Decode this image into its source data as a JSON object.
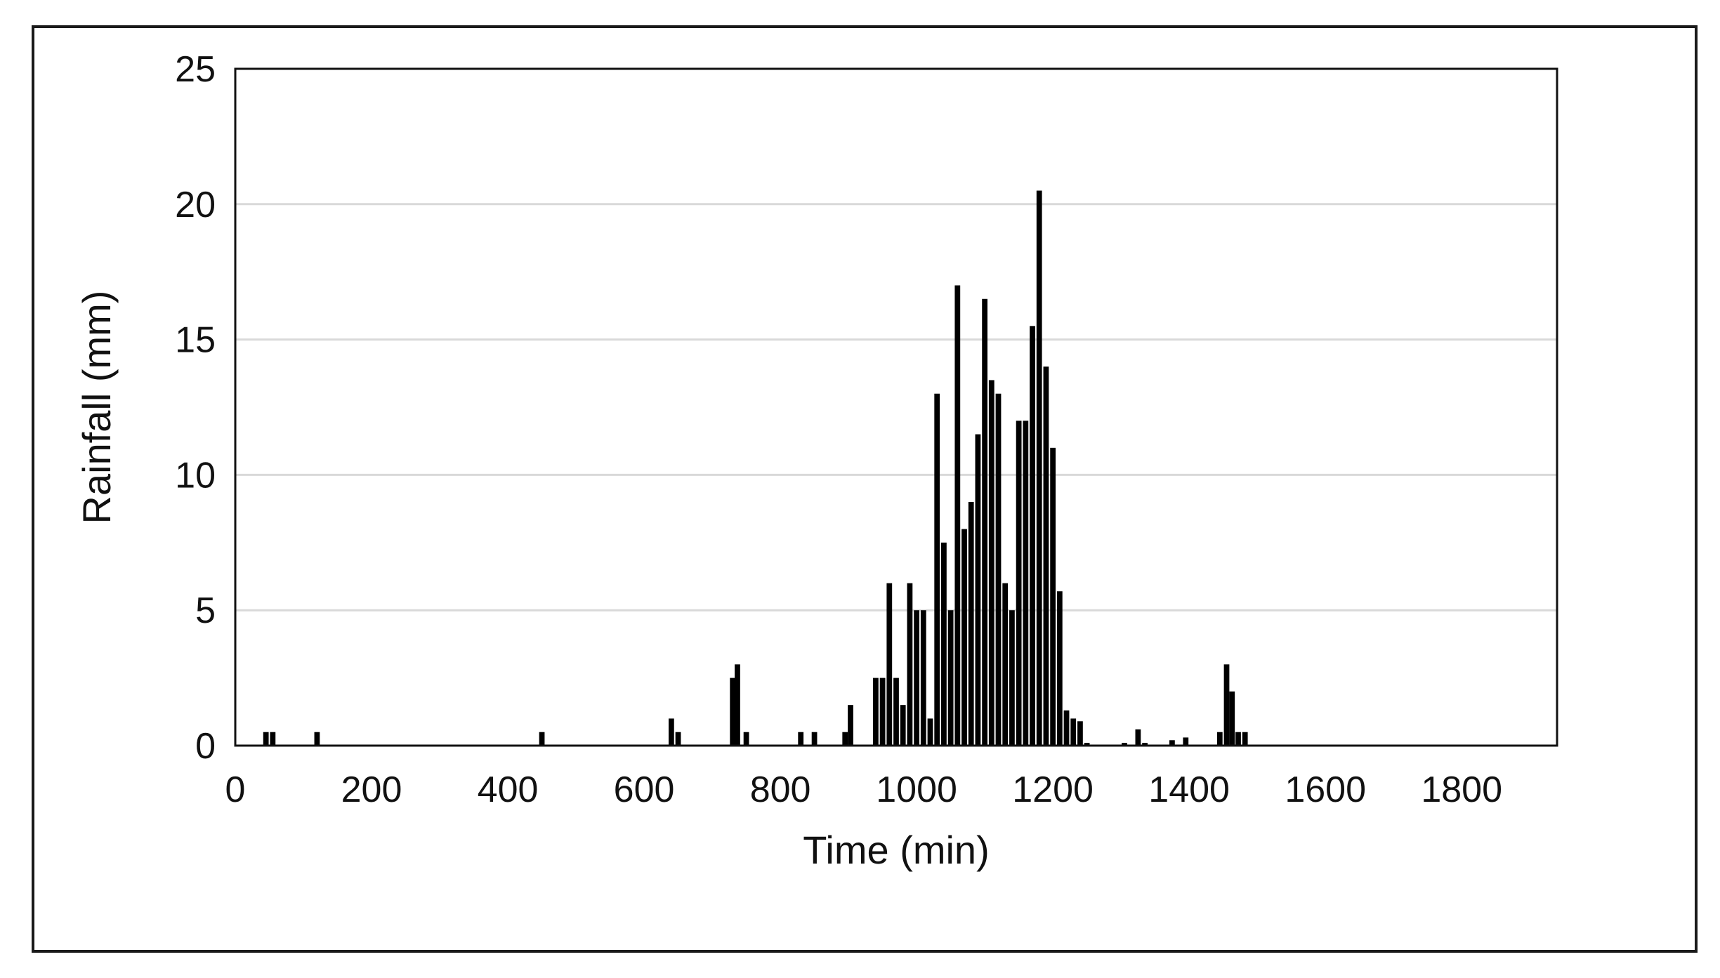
{
  "chart_data": {
    "type": "bar",
    "title": "",
    "xlabel": "Time (min)",
    "ylabel": "Rainfall (mm)",
    "xlim": [
      0,
      1940
    ],
    "ylim": [
      0,
      25
    ],
    "xticks": [
      0,
      200,
      400,
      600,
      800,
      1000,
      1200,
      1400,
      1600,
      1800
    ],
    "yticks": [
      0,
      5,
      10,
      15,
      20,
      25
    ],
    "grid": "horizontal",
    "legend": "none",
    "bar_color": "#000000",
    "grid_color": "#d9d9d9",
    "x": [
      45,
      55,
      120,
      450,
      640,
      650,
      730,
      737,
      750,
      830,
      850,
      895,
      903,
      940,
      950,
      960,
      970,
      980,
      990,
      1000,
      1010,
      1020,
      1030,
      1040,
      1050,
      1060,
      1070,
      1080,
      1090,
      1100,
      1110,
      1120,
      1130,
      1140,
      1150,
      1160,
      1170,
      1180,
      1190,
      1200,
      1210,
      1220,
      1230,
      1240,
      1250,
      1305,
      1325,
      1335,
      1375,
      1395,
      1445,
      1455,
      1463,
      1472,
      1482
    ],
    "values": [
      0.5,
      0.5,
      0.5,
      0.5,
      1.0,
      0.5,
      2.5,
      3.0,
      0.5,
      0.5,
      0.5,
      0.5,
      1.5,
      2.5,
      2.5,
      6.0,
      2.5,
      1.5,
      6.0,
      5.0,
      5.0,
      1.0,
      13.0,
      7.5,
      5.0,
      17.0,
      8.0,
      9.0,
      11.5,
      16.5,
      13.5,
      13.0,
      6.0,
      5.0,
      12.0,
      12.0,
      15.5,
      20.5,
      14.0,
      11.0,
      5.7,
      1.3,
      1.0,
      0.9,
      0.1,
      0.1,
      0.6,
      0.1,
      0.2,
      0.3,
      0.5,
      3.0,
      2.0,
      0.5,
      0.5
    ]
  }
}
